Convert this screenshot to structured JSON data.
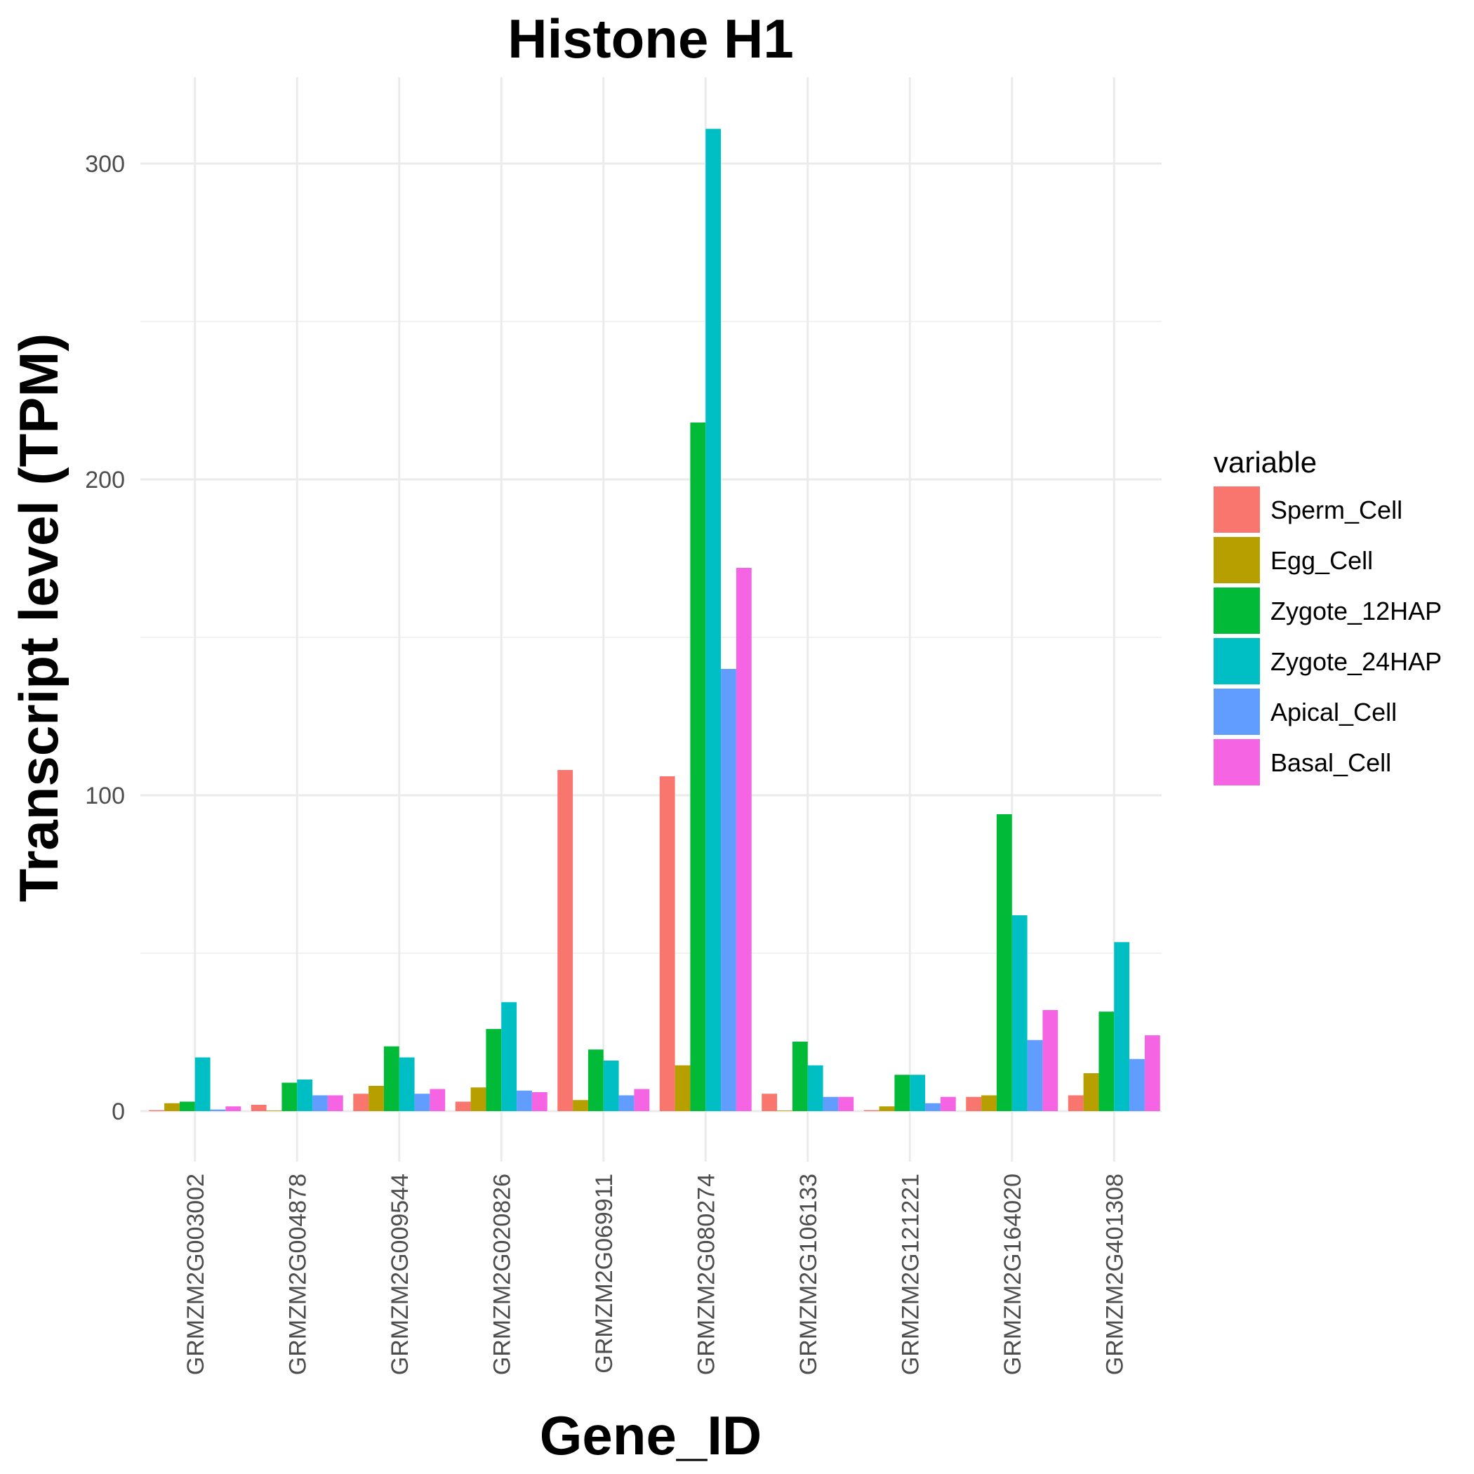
{
  "chart_data": {
    "type": "bar",
    "title": "Histone H1",
    "xlabel": "Gene_ID",
    "ylabel": "Transcript level (TPM)",
    "ylim": [
      -17,
      325
    ],
    "yticks": [
      0,
      100,
      200,
      300
    ],
    "grid": true,
    "legend_title": "variable",
    "legend_position": "right",
    "categories": [
      "GRMZM2G003002",
      "GRMZM2G004878",
      "GRMZM2G009544",
      "GRMZM2G020826",
      "GRMZM2G069911",
      "GRMZM2G080274",
      "GRMZM2G106133",
      "GRMZM2G121221",
      "GRMZM2G164020",
      "GRMZM2G401308"
    ],
    "series": [
      {
        "name": "Sperm_Cell",
        "color": "#F8766D",
        "values": [
          0.3,
          2,
          5.5,
          3,
          108,
          106,
          5.5,
          0.3,
          4.5,
          5
        ]
      },
      {
        "name": "Egg_Cell",
        "color": "#B79F00",
        "values": [
          2.5,
          0,
          8,
          7.5,
          3.5,
          14.5,
          0,
          1.5,
          5,
          12
        ]
      },
      {
        "name": "Zygote_12HAP",
        "color": "#00BA38",
        "values": [
          3,
          9,
          20.5,
          26,
          19.5,
          218,
          22,
          11.5,
          94,
          31.5
        ]
      },
      {
        "name": "Zygote_24HAP",
        "color": "#00BFC4",
        "values": [
          17,
          10,
          17,
          34.5,
          16,
          311,
          14.5,
          11.5,
          62,
          53.5
        ]
      },
      {
        "name": "Apical_Cell",
        "color": "#619CFF",
        "values": [
          0.5,
          5,
          5.5,
          6.5,
          5,
          140,
          4.5,
          2.5,
          22.5,
          16.5
        ]
      },
      {
        "name": "Basal_Cell",
        "color": "#F564E3",
        "values": [
          1.5,
          5,
          7,
          6,
          7,
          172,
          4.5,
          4.5,
          32,
          24
        ]
      }
    ]
  }
}
